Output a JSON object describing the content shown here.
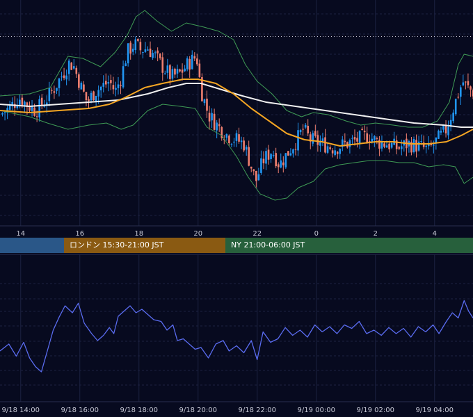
{
  "colors": {
    "background": "#070a1f",
    "grid": "#1c2140",
    "candle_up": "#2196f3",
    "candle_down": "#ef7f6f",
    "ma_short": "#f5a623",
    "ma_long": "#f0f0f0",
    "bollinger": "#3f9b55",
    "oscillator": "#5a6cf0",
    "asia_session": "#2a5788",
    "london_session": "#8a5a12",
    "ny_session": "#27603c"
  },
  "sessions": [
    {
      "label": "",
      "color_key": "asia_session"
    },
    {
      "label": "ロンドン 15:30-21:00 JST",
      "color_key": "london_session"
    },
    {
      "label": "NY 21:00-06:00 JST",
      "color_key": "ny_session"
    }
  ],
  "chart_data": [
    {
      "type": "candlestick",
      "title": "",
      "xlabel": "",
      "ylabel": "",
      "x_tick_labels": [
        "14",
        "16",
        "18",
        "20",
        "22",
        "0",
        "2",
        "4"
      ],
      "x_tick_hours": [
        14,
        16,
        18,
        20,
        22,
        24,
        26,
        28
      ],
      "xlim": [
        13.3,
        29.3
      ],
      "ylim": [
        0,
        100
      ],
      "y_axis_labels_visible": false,
      "grid": true,
      "price_level_line": 87.5,
      "candle_interval_minutes": 5,
      "overlays": [
        {
          "name": "",
          "kind": "short-moving-average",
          "color_key": "ma_short"
        },
        {
          "name": "",
          "kind": "long-moving-average",
          "color_key": "ma_long"
        },
        {
          "name": "",
          "kind": "bollinger-bands",
          "color_key": "bollinger"
        }
      ],
      "close_path": [
        [
          13.3,
          50
        ],
        [
          13.6,
          53
        ],
        [
          13.95,
          58
        ],
        [
          14.2,
          55
        ],
        [
          14.5,
          52
        ],
        [
          14.8,
          56
        ],
        [
          15.1,
          62
        ],
        [
          15.4,
          69
        ],
        [
          15.65,
          75
        ],
        [
          15.8,
          73
        ],
        [
          16.05,
          63
        ],
        [
          16.25,
          56
        ],
        [
          16.5,
          61
        ],
        [
          16.8,
          64
        ],
        [
          17.0,
          66
        ],
        [
          17.2,
          61
        ],
        [
          17.4,
          68
        ],
        [
          17.6,
          80
        ],
        [
          17.85,
          84
        ],
        [
          18.05,
          81
        ],
        [
          18.3,
          82
        ],
        [
          18.55,
          78
        ],
        [
          18.8,
          73
        ],
        [
          19.1,
          68
        ],
        [
          19.4,
          70
        ],
        [
          19.7,
          75
        ],
        [
          19.95,
          78
        ],
        [
          20.1,
          62
        ],
        [
          20.35,
          50
        ],
        [
          20.7,
          44
        ],
        [
          21.0,
          40
        ],
        [
          21.3,
          38
        ],
        [
          21.55,
          36
        ],
        [
          21.8,
          25
        ],
        [
          21.95,
          18
        ],
        [
          22.2,
          28
        ],
        [
          22.5,
          33
        ],
        [
          22.75,
          26
        ],
        [
          23.05,
          32
        ],
        [
          23.3,
          37
        ],
        [
          23.55,
          43
        ],
        [
          23.8,
          38
        ],
        [
          24.2,
          36
        ],
        [
          24.6,
          34
        ],
        [
          25.0,
          36
        ],
        [
          25.4,
          38
        ],
        [
          25.75,
          40
        ],
        [
          26.05,
          37
        ],
        [
          26.4,
          36
        ],
        [
          26.75,
          34
        ],
        [
          27.1,
          36
        ],
        [
          27.45,
          35
        ],
        [
          27.8,
          33
        ],
        [
          28.1,
          38
        ],
        [
          28.4,
          43
        ],
        [
          28.7,
          56
        ],
        [
          28.95,
          66
        ],
        [
          29.1,
          63
        ],
        [
          29.3,
          61
        ]
      ],
      "short_ma": [
        [
          13.3,
          52
        ],
        [
          14.3,
          51
        ],
        [
          15.3,
          52
        ],
        [
          16.3,
          53
        ],
        [
          17.0,
          55
        ],
        [
          17.5,
          58
        ],
        [
          18.2,
          63
        ],
        [
          18.8,
          65
        ],
        [
          19.5,
          67
        ],
        [
          20.0,
          67
        ],
        [
          20.6,
          65
        ],
        [
          21.2,
          60
        ],
        [
          21.8,
          53
        ],
        [
          22.5,
          46
        ],
        [
          23.0,
          41
        ],
        [
          23.6,
          38
        ],
        [
          24.2,
          37
        ],
        [
          24.8,
          35
        ],
        [
          25.4,
          36
        ],
        [
          26.0,
          37
        ],
        [
          26.6,
          37
        ],
        [
          27.2,
          36
        ],
        [
          27.8,
          36
        ],
        [
          28.4,
          37
        ],
        [
          28.9,
          40
        ],
        [
          29.3,
          43
        ]
      ],
      "long_ma": [
        [
          13.3,
          55
        ],
        [
          14.3,
          54
        ],
        [
          15.3,
          55
        ],
        [
          16.3,
          56
        ],
        [
          17.3,
          57
        ],
        [
          18.3,
          60
        ],
        [
          19.0,
          63
        ],
        [
          19.6,
          65
        ],
        [
          20.1,
          65
        ],
        [
          20.8,
          62
        ],
        [
          21.5,
          59
        ],
        [
          22.3,
          56
        ],
        [
          23.3,
          54
        ],
        [
          24.3,
          52
        ],
        [
          25.3,
          50
        ],
        [
          26.3,
          48
        ],
        [
          27.3,
          46
        ],
        [
          28.3,
          45
        ],
        [
          28.9,
          44
        ],
        [
          29.3,
          44
        ]
      ],
      "bollinger_upper": [
        [
          13.3,
          59
        ],
        [
          14.3,
          60
        ],
        [
          15.0,
          63
        ],
        [
          15.6,
          78
        ],
        [
          16.1,
          77
        ],
        [
          16.7,
          73
        ],
        [
          17.2,
          80
        ],
        [
          17.6,
          88
        ],
        [
          17.9,
          97
        ],
        [
          18.2,
          100
        ],
        [
          18.6,
          95
        ],
        [
          19.1,
          90
        ],
        [
          19.6,
          94
        ],
        [
          20.2,
          92
        ],
        [
          20.7,
          90
        ],
        [
          21.2,
          86
        ],
        [
          21.6,
          74
        ],
        [
          22.0,
          66
        ],
        [
          22.5,
          60
        ],
        [
          23.0,
          52
        ],
        [
          23.5,
          49
        ],
        [
          23.9,
          51
        ],
        [
          24.4,
          50
        ],
        [
          25.0,
          47
        ],
        [
          25.5,
          45
        ],
        [
          26.0,
          46
        ],
        [
          26.6,
          45
        ],
        [
          27.1,
          44
        ],
        [
          27.6,
          44
        ],
        [
          28.1,
          47
        ],
        [
          28.5,
          56
        ],
        [
          28.8,
          74
        ],
        [
          29.0,
          79
        ],
        [
          29.3,
          78
        ]
      ],
      "bollinger_lower": [
        [
          13.3,
          52
        ],
        [
          14.3,
          49
        ],
        [
          14.9,
          46
        ],
        [
          15.6,
          43
        ],
        [
          16.3,
          45
        ],
        [
          16.9,
          46
        ],
        [
          17.4,
          43
        ],
        [
          17.8,
          45
        ],
        [
          18.3,
          52
        ],
        [
          18.8,
          55
        ],
        [
          19.4,
          54
        ],
        [
          19.9,
          53
        ],
        [
          20.3,
          44
        ],
        [
          20.8,
          40
        ],
        [
          21.3,
          30
        ],
        [
          21.7,
          20
        ],
        [
          22.1,
          12
        ],
        [
          22.6,
          9
        ],
        [
          23.0,
          10
        ],
        [
          23.4,
          15
        ],
        [
          23.9,
          18
        ],
        [
          24.3,
          24
        ],
        [
          24.8,
          26
        ],
        [
          25.3,
          27
        ],
        [
          25.8,
          28
        ],
        [
          26.3,
          28
        ],
        [
          26.8,
          27
        ],
        [
          27.3,
          27
        ],
        [
          27.8,
          25
        ],
        [
          28.3,
          26
        ],
        [
          28.7,
          25
        ],
        [
          29.0,
          17
        ],
        [
          29.3,
          20
        ]
      ]
    },
    {
      "type": "line",
      "title": "",
      "xlabel": "",
      "ylabel": "",
      "x_tick_labels": [
        "9/18 14:00",
        "9/18 16:00",
        "9/18 18:00",
        "9/18 20:00",
        "9/18 22:00",
        "9/19 00:00",
        "9/19 02:00",
        "9/19 04:00"
      ],
      "x_tick_hours": [
        14,
        16,
        18,
        20,
        22,
        24,
        26,
        28
      ],
      "xlim": [
        13.3,
        29.3
      ],
      "ylim": [
        0,
        100
      ],
      "y_axis_labels_visible": false,
      "grid": true,
      "series": [
        {
          "name": "",
          "color_key": "oscillator",
          "values": [
            [
              13.3,
              28
            ],
            [
              13.6,
              36
            ],
            [
              13.85,
              22
            ],
            [
              14.1,
              38
            ],
            [
              14.3,
              20
            ],
            [
              14.5,
              10
            ],
            [
              14.7,
              4
            ],
            [
              14.9,
              28
            ],
            [
              15.1,
              52
            ],
            [
              15.3,
              67
            ],
            [
              15.5,
              80
            ],
            [
              15.75,
              72
            ],
            [
              15.95,
              83
            ],
            [
              16.15,
              60
            ],
            [
              16.4,
              48
            ],
            [
              16.6,
              40
            ],
            [
              16.8,
              46
            ],
            [
              17.0,
              55
            ],
            [
              17.15,
              48
            ],
            [
              17.3,
              68
            ],
            [
              17.5,
              74
            ],
            [
              17.7,
              80
            ],
            [
              17.9,
              72
            ],
            [
              18.1,
              76
            ],
            [
              18.3,
              70
            ],
            [
              18.5,
              64
            ],
            [
              18.75,
              62
            ],
            [
              18.95,
              52
            ],
            [
              19.15,
              58
            ],
            [
              19.3,
              40
            ],
            [
              19.5,
              42
            ],
            [
              19.7,
              36
            ],
            [
              19.9,
              30
            ],
            [
              20.1,
              32
            ],
            [
              20.35,
              20
            ],
            [
              20.6,
              36
            ],
            [
              20.85,
              40
            ],
            [
              21.05,
              28
            ],
            [
              21.3,
              34
            ],
            [
              21.55,
              26
            ],
            [
              21.8,
              40
            ],
            [
              22.0,
              18
            ],
            [
              22.2,
              50
            ],
            [
              22.45,
              38
            ],
            [
              22.7,
              42
            ],
            [
              22.95,
              55
            ],
            [
              23.2,
              46
            ],
            [
              23.45,
              52
            ],
            [
              23.7,
              44
            ],
            [
              23.95,
              58
            ],
            [
              24.2,
              50
            ],
            [
              24.45,
              56
            ],
            [
              24.7,
              48
            ],
            [
              24.95,
              58
            ],
            [
              25.2,
              54
            ],
            [
              25.45,
              62
            ],
            [
              25.7,
              48
            ],
            [
              25.95,
              52
            ],
            [
              26.2,
              46
            ],
            [
              26.45,
              55
            ],
            [
              26.7,
              48
            ],
            [
              26.95,
              54
            ],
            [
              27.2,
              44
            ],
            [
              27.45,
              56
            ],
            [
              27.7,
              50
            ],
            [
              27.95,
              58
            ],
            [
              28.15,
              48
            ],
            [
              28.4,
              62
            ],
            [
              28.6,
              72
            ],
            [
              28.8,
              66
            ],
            [
              29.0,
              86
            ],
            [
              29.15,
              74
            ],
            [
              29.3,
              66
            ]
          ]
        }
      ]
    }
  ]
}
